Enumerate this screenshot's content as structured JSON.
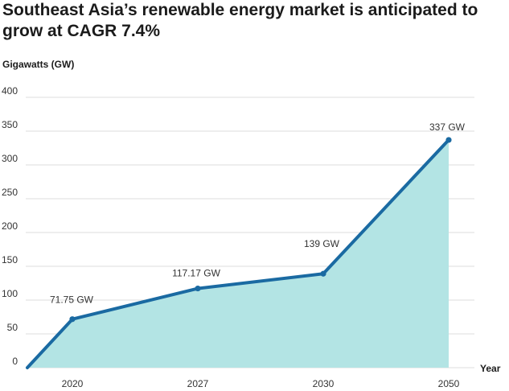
{
  "chart_data": {
    "type": "area",
    "title": "Southeast Asia’s renewable energy market is anticipated to grow at CAGR 7.4%",
    "ylabel": "Gigawatts (GW)",
    "xlabel": "Year",
    "ylim": [
      0,
      420
    ],
    "yticks": [
      0,
      50,
      100,
      150,
      200,
      250,
      300,
      350,
      400
    ],
    "categories": [
      "2020",
      "2027",
      "2030",
      "2050"
    ],
    "start_value": 0,
    "values": [
      71.75,
      117.17,
      139,
      337
    ],
    "data_labels": [
      "71.75 GW",
      "117.17 GW",
      "139 GW",
      "337 GW"
    ],
    "grid": true,
    "colors": {
      "line": "#1a6aa2",
      "fill": "#b3e4e4",
      "grid": "#dcdcdc"
    }
  }
}
